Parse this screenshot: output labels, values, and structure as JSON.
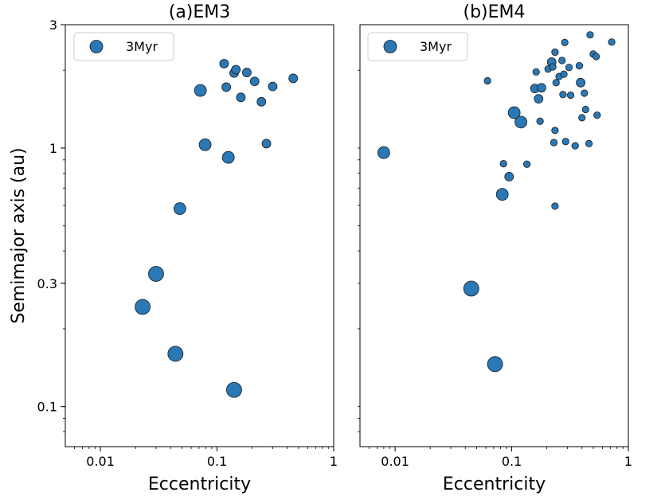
{
  "chart_data": [
    {
      "type": "scatter",
      "title": "(a)EM3",
      "xlabel": "Eccentricity",
      "ylabel": "Semimajor axis (au)",
      "xscale": "log",
      "yscale": "log",
      "xlim": [
        0.005,
        1
      ],
      "ylim": [
        0.07,
        3
      ],
      "xticks": [
        {
          "value": 0.01,
          "label": "0.01"
        },
        {
          "value": 0.1,
          "label": "0.1"
        },
        {
          "value": 1,
          "label": "1"
        }
      ],
      "yticks": [
        {
          "value": 0.1,
          "label": "0.1"
        },
        {
          "value": 0.3,
          "label": "0.3"
        },
        {
          "value": 1,
          "label": "1"
        },
        {
          "value": 3,
          "label": "3"
        }
      ],
      "legend": {
        "label": "3Myr",
        "position": "top-left"
      },
      "color": "#2a78b5",
      "points": [
        {
          "e": 0.023,
          "a": 0.243,
          "size": "large"
        },
        {
          "e": 0.03,
          "a": 0.326,
          "size": "large"
        },
        {
          "e": 0.044,
          "a": 0.16,
          "size": "large"
        },
        {
          "e": 0.14,
          "a": 0.116,
          "size": "large"
        },
        {
          "e": 0.048,
          "a": 0.583,
          "size": "medium"
        },
        {
          "e": 0.072,
          "a": 1.67,
          "size": "medium"
        },
        {
          "e": 0.079,
          "a": 1.03,
          "size": "medium"
        },
        {
          "e": 0.125,
          "a": 0.92,
          "size": "medium"
        },
        {
          "e": 0.115,
          "a": 2.12,
          "size": "small"
        },
        {
          "e": 0.12,
          "a": 1.72,
          "size": "small"
        },
        {
          "e": 0.14,
          "a": 1.95,
          "size": "small"
        },
        {
          "e": 0.145,
          "a": 2.01,
          "size": "small"
        },
        {
          "e": 0.16,
          "a": 1.57,
          "size": "small"
        },
        {
          "e": 0.18,
          "a": 1.96,
          "size": "small"
        },
        {
          "e": 0.21,
          "a": 1.81,
          "size": "small"
        },
        {
          "e": 0.24,
          "a": 1.51,
          "size": "small"
        },
        {
          "e": 0.265,
          "a": 1.04,
          "size": "small"
        },
        {
          "e": 0.3,
          "a": 1.73,
          "size": "small"
        },
        {
          "e": 0.45,
          "a": 1.86,
          "size": "small"
        }
      ]
    },
    {
      "type": "scatter",
      "title": "(b)EM4",
      "xlabel": "Eccentricity",
      "ylabel": "",
      "xscale": "log",
      "yscale": "log",
      "xlim": [
        0.005,
        1
      ],
      "ylim": [
        0.07,
        3
      ],
      "xticks": [
        {
          "value": 0.01,
          "label": "0.01"
        },
        {
          "value": 0.1,
          "label": "0.1"
        },
        {
          "value": 1,
          "label": "1"
        }
      ],
      "yticks": [],
      "legend": {
        "label": "3Myr",
        "position": "top-left"
      },
      "color": "#2a78b5",
      "points": [
        {
          "e": 0.008,
          "a": 0.96,
          "size": "medium"
        },
        {
          "e": 0.045,
          "a": 0.286,
          "size": "large"
        },
        {
          "e": 0.072,
          "a": 0.146,
          "size": "large"
        },
        {
          "e": 0.083,
          "a": 0.662,
          "size": "medium"
        },
        {
          "e": 0.095,
          "a": 0.775,
          "size": "small"
        },
        {
          "e": 0.105,
          "a": 1.37,
          "size": "medium"
        },
        {
          "e": 0.12,
          "a": 1.26,
          "size": "medium"
        },
        {
          "e": 0.062,
          "a": 1.82,
          "size": "tiny"
        },
        {
          "e": 0.085,
          "a": 0.87,
          "size": "tiny"
        },
        {
          "e": 0.135,
          "a": 0.866,
          "size": "tiny"
        },
        {
          "e": 0.158,
          "a": 1.7,
          "size": "small"
        },
        {
          "e": 0.162,
          "a": 1.97,
          "size": "tiny"
        },
        {
          "e": 0.17,
          "a": 1.55,
          "size": "small"
        },
        {
          "e": 0.18,
          "a": 1.71,
          "size": "small"
        },
        {
          "e": 0.175,
          "a": 1.27,
          "size": "tiny"
        },
        {
          "e": 0.205,
          "a": 2.02,
          "size": "tiny"
        },
        {
          "e": 0.22,
          "a": 2.15,
          "size": "small"
        },
        {
          "e": 0.225,
          "a": 2.06,
          "size": "tiny"
        },
        {
          "e": 0.235,
          "a": 2.35,
          "size": "tiny"
        },
        {
          "e": 0.24,
          "a": 1.79,
          "size": "tiny"
        },
        {
          "e": 0.235,
          "a": 1.17,
          "size": "tiny"
        },
        {
          "e": 0.23,
          "a": 1.05,
          "size": "tiny"
        },
        {
          "e": 0.235,
          "a": 0.596,
          "size": "tiny"
        },
        {
          "e": 0.255,
          "a": 1.89,
          "size": "tiny"
        },
        {
          "e": 0.27,
          "a": 2.18,
          "size": "tiny"
        },
        {
          "e": 0.28,
          "a": 1.93,
          "size": "tiny"
        },
        {
          "e": 0.275,
          "a": 1.61,
          "size": "tiny"
        },
        {
          "e": 0.285,
          "a": 2.56,
          "size": "tiny"
        },
        {
          "e": 0.29,
          "a": 1.06,
          "size": "tiny"
        },
        {
          "e": 0.31,
          "a": 2.05,
          "size": "tiny"
        },
        {
          "e": 0.32,
          "a": 1.6,
          "size": "tiny"
        },
        {
          "e": 0.35,
          "a": 1.02,
          "size": "tiny"
        },
        {
          "e": 0.38,
          "a": 2.08,
          "size": "tiny"
        },
        {
          "e": 0.39,
          "a": 1.79,
          "size": "small"
        },
        {
          "e": 0.4,
          "a": 1.31,
          "size": "tiny"
        },
        {
          "e": 0.42,
          "a": 1.63,
          "size": "tiny"
        },
        {
          "e": 0.43,
          "a": 1.41,
          "size": "tiny"
        },
        {
          "e": 0.46,
          "a": 1.04,
          "size": "tiny"
        },
        {
          "e": 0.47,
          "a": 2.74,
          "size": "tiny"
        },
        {
          "e": 0.5,
          "a": 2.31,
          "size": "tiny"
        },
        {
          "e": 0.53,
          "a": 2.26,
          "size": "tiny"
        },
        {
          "e": 0.54,
          "a": 1.34,
          "size": "tiny"
        },
        {
          "e": 0.72,
          "a": 2.57,
          "size": "tiny"
        }
      ]
    }
  ]
}
